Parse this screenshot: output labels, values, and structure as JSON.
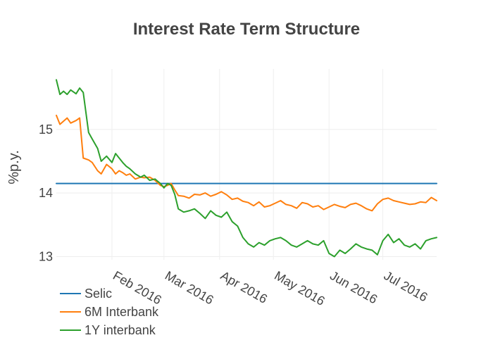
{
  "chart_data": {
    "type": "line",
    "title": "Interest Rate Term Structure",
    "xlabel": "",
    "ylabel": "%p.y.",
    "x_range": [
      "2016-01-01",
      "2016-07-31"
    ],
    "ylim": [
      12.95,
      15.95
    ],
    "grid": true,
    "legend_position": "bottom-left",
    "x_ticks": [
      {
        "date": "2016-02-01",
        "label": "Feb 2016"
      },
      {
        "date": "2016-03-01",
        "label": "Mar 2016"
      },
      {
        "date": "2016-04-01",
        "label": "Apr 2016"
      },
      {
        "date": "2016-05-01",
        "label": "May 2016"
      },
      {
        "date": "2016-06-01",
        "label": "Jun 2016"
      },
      {
        "date": "2016-07-01",
        "label": "Jul 2016"
      }
    ],
    "y_ticks": [
      {
        "value": 13,
        "label": "13"
      },
      {
        "value": 14,
        "label": "14"
      },
      {
        "value": 15,
        "label": "15"
      }
    ],
    "series": [
      {
        "name": "Selic",
        "color": "#1f77b4",
        "x": [
          "2016-01-01",
          "2016-07-31"
        ],
        "y": [
          14.15,
          14.15
        ]
      },
      {
        "name": "6M Interbank",
        "color": "#ff7f0e",
        "x": [
          "2016-01-01",
          "2016-01-03",
          "2016-01-05",
          "2016-01-07",
          "2016-01-09",
          "2016-01-12",
          "2016-01-14",
          "2016-01-16",
          "2016-01-19",
          "2016-01-21",
          "2016-01-24",
          "2016-01-26",
          "2016-01-29",
          "2016-02-01",
          "2016-02-03",
          "2016-02-05",
          "2016-02-07",
          "2016-02-09",
          "2016-02-11",
          "2016-02-14",
          "2016-02-17",
          "2016-02-19",
          "2016-02-22",
          "2016-02-25",
          "2016-02-28",
          "2016-03-01",
          "2016-03-03",
          "2016-03-05",
          "2016-03-07",
          "2016-03-09",
          "2016-03-12",
          "2016-03-15",
          "2016-03-18",
          "2016-03-21",
          "2016-03-24",
          "2016-03-27",
          "2016-03-30",
          "2016-04-02",
          "2016-04-05",
          "2016-04-08",
          "2016-04-11",
          "2016-04-14",
          "2016-04-17",
          "2016-04-20",
          "2016-04-23",
          "2016-04-26",
          "2016-04-29",
          "2016-05-02",
          "2016-05-05",
          "2016-05-08",
          "2016-05-11",
          "2016-05-14",
          "2016-05-17",
          "2016-05-20",
          "2016-05-23",
          "2016-05-26",
          "2016-05-29",
          "2016-06-01",
          "2016-06-04",
          "2016-06-07",
          "2016-06-10",
          "2016-06-13",
          "2016-06-16",
          "2016-06-19",
          "2016-06-22",
          "2016-06-25",
          "2016-06-28",
          "2016-07-01",
          "2016-07-04",
          "2016-07-07",
          "2016-07-10",
          "2016-07-13",
          "2016-07-16",
          "2016-07-19",
          "2016-07-22",
          "2016-07-25",
          "2016-07-28",
          "2016-07-31"
        ],
        "y": [
          15.22,
          15.08,
          15.13,
          15.18,
          15.1,
          15.14,
          15.18,
          14.55,
          14.52,
          14.48,
          14.35,
          14.3,
          14.45,
          14.38,
          14.3,
          14.35,
          14.32,
          14.28,
          14.3,
          14.22,
          14.25,
          14.24,
          14.25,
          14.2,
          14.12,
          14.1,
          14.12,
          14.15,
          14.05,
          13.96,
          13.95,
          13.92,
          13.98,
          13.97,
          14.0,
          13.95,
          13.98,
          14.02,
          13.97,
          13.9,
          13.92,
          13.87,
          13.85,
          13.8,
          13.86,
          13.78,
          13.8,
          13.84,
          13.88,
          13.82,
          13.8,
          13.76,
          13.85,
          13.83,
          13.78,
          13.8,
          13.74,
          13.78,
          13.82,
          13.79,
          13.77,
          13.82,
          13.84,
          13.8,
          13.75,
          13.72,
          13.83,
          13.9,
          13.92,
          13.88,
          13.86,
          13.84,
          13.82,
          13.83,
          13.86,
          13.85,
          13.93,
          13.88
        ]
      },
      {
        "name": "1Y interbank",
        "color": "#2ca02c",
        "x": [
          "2016-01-01",
          "2016-01-03",
          "2016-01-05",
          "2016-01-07",
          "2016-01-09",
          "2016-01-12",
          "2016-01-14",
          "2016-01-16",
          "2016-01-19",
          "2016-01-21",
          "2016-01-24",
          "2016-01-26",
          "2016-01-29",
          "2016-02-01",
          "2016-02-03",
          "2016-02-05",
          "2016-02-07",
          "2016-02-09",
          "2016-02-11",
          "2016-02-14",
          "2016-02-17",
          "2016-02-19",
          "2016-02-22",
          "2016-02-25",
          "2016-02-28",
          "2016-03-01",
          "2016-03-03",
          "2016-03-05",
          "2016-03-07",
          "2016-03-09",
          "2016-03-12",
          "2016-03-15",
          "2016-03-18",
          "2016-03-21",
          "2016-03-24",
          "2016-03-27",
          "2016-03-30",
          "2016-04-02",
          "2016-04-05",
          "2016-04-08",
          "2016-04-11",
          "2016-04-14",
          "2016-04-17",
          "2016-04-20",
          "2016-04-23",
          "2016-04-26",
          "2016-04-29",
          "2016-05-02",
          "2016-05-05",
          "2016-05-08",
          "2016-05-11",
          "2016-05-14",
          "2016-05-17",
          "2016-05-20",
          "2016-05-23",
          "2016-05-26",
          "2016-05-29",
          "2016-06-01",
          "2016-06-04",
          "2016-06-07",
          "2016-06-10",
          "2016-06-13",
          "2016-06-16",
          "2016-06-19",
          "2016-06-22",
          "2016-06-25",
          "2016-06-28",
          "2016-07-01",
          "2016-07-04",
          "2016-07-07",
          "2016-07-10",
          "2016-07-13",
          "2016-07-16",
          "2016-07-19",
          "2016-07-22",
          "2016-07-25",
          "2016-07-28",
          "2016-07-31"
        ],
        "y": [
          15.78,
          15.55,
          15.6,
          15.55,
          15.62,
          15.56,
          15.65,
          15.58,
          14.95,
          14.85,
          14.7,
          14.5,
          14.58,
          14.48,
          14.62,
          14.55,
          14.48,
          14.42,
          14.38,
          14.3,
          14.25,
          14.28,
          14.2,
          14.22,
          14.15,
          14.08,
          14.15,
          14.12,
          13.98,
          13.75,
          13.7,
          13.72,
          13.75,
          13.68,
          13.6,
          13.72,
          13.65,
          13.62,
          13.7,
          13.55,
          13.48,
          13.3,
          13.2,
          13.15,
          13.22,
          13.18,
          13.25,
          13.28,
          13.3,
          13.25,
          13.18,
          13.15,
          13.2,
          13.25,
          13.2,
          13.18,
          13.25,
          13.05,
          13.0,
          13.1,
          13.05,
          13.12,
          13.2,
          13.15,
          13.12,
          13.1,
          13.03,
          13.25,
          13.35,
          13.22,
          13.28,
          13.18,
          13.15,
          13.2,
          13.12,
          13.25,
          13.28,
          13.3
        ]
      }
    ]
  }
}
